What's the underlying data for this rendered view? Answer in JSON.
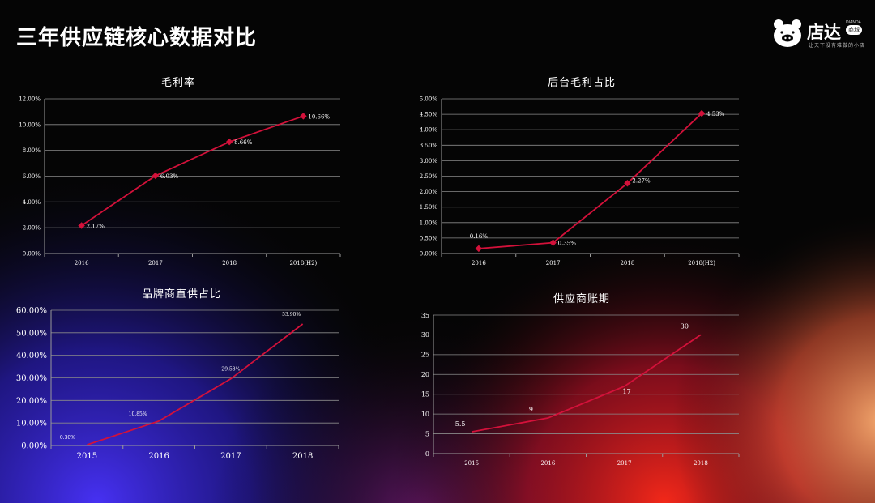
{
  "page": {
    "title": "三年供应链核心数据对比",
    "logo": {
      "name": "店达",
      "english": "DIANDA",
      "badge": "商城",
      "slogan": "让天下没有难做的小店"
    }
  },
  "colors": {
    "line": "#d3113a",
    "marker": "#d3113a",
    "grid": "#8a8a8a",
    "axis": "#9a9a9a",
    "text": "#ffffff"
  },
  "chart_data": [
    {
      "type": "line",
      "title": "毛利率",
      "categories": [
        "2016",
        "2017",
        "2018",
        "2018(H2)"
      ],
      "values": [
        2.17,
        6.03,
        8.66,
        10.66
      ],
      "value_labels": [
        "2.17%",
        "6.03%",
        "8.66%",
        "10.66%"
      ],
      "y_ticks": [
        "0.00%",
        "2.00%",
        "4.00%",
        "6.00%",
        "8.00%",
        "10.00%",
        "12.00%"
      ],
      "ylim": [
        0,
        12
      ],
      "grid": true,
      "markers": true
    },
    {
      "type": "line",
      "title": "后台毛利占比",
      "categories": [
        "2016",
        "2017",
        "2018",
        "2018(H2)"
      ],
      "values": [
        0.16,
        0.35,
        2.27,
        4.53
      ],
      "value_labels": [
        "0.16%",
        "0.35%",
        "2.27%",
        "4.53%"
      ],
      "y_ticks": [
        "0.00%",
        "0.50%",
        "1.00%",
        "1.50%",
        "2.00%",
        "2.50%",
        "3.00%",
        "3.50%",
        "4.00%",
        "4.50%",
        "5.00%"
      ],
      "ylim": [
        0,
        5
      ],
      "grid": true,
      "markers": true
    },
    {
      "type": "line",
      "title": "品牌商直供占比",
      "categories": [
        "2015",
        "2016",
        "2017",
        "2018"
      ],
      "values": [
        0.3,
        10.85,
        29.58,
        53.9
      ],
      "value_labels": [
        "0.30%",
        "10.85%",
        "29.58%",
        "53.90%"
      ],
      "y_ticks": [
        "0.00%",
        "10.00%",
        "20.00%",
        "30.00%",
        "40.00%",
        "50.00%",
        "60.00%"
      ],
      "ylim": [
        0,
        60
      ],
      "grid": true,
      "markers": false
    },
    {
      "type": "line",
      "title": "供应商账期",
      "categories": [
        "2015",
        "2016",
        "2017",
        "2018"
      ],
      "values": [
        5.5,
        9,
        17,
        30
      ],
      "value_labels": [
        "5.5",
        "9",
        "17",
        "30"
      ],
      "y_ticks": [
        "0",
        "5",
        "10",
        "15",
        "20",
        "25",
        "30",
        "35"
      ],
      "ylim": [
        0,
        35
      ],
      "grid": true,
      "markers": false
    }
  ]
}
